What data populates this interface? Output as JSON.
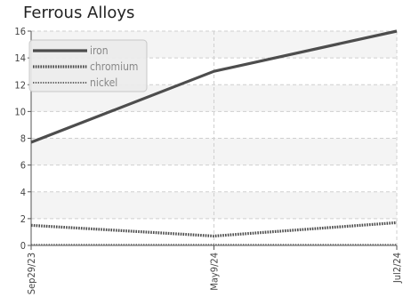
{
  "chart_data": {
    "type": "line",
    "title": "Ferrous Alloys",
    "xlabel": "",
    "ylabel": "",
    "x": [
      "Sep29/23",
      "May9/24",
      "Jul2/24"
    ],
    "ylim": [
      0,
      16
    ],
    "yticks": [
      0,
      2,
      4,
      6,
      8,
      10,
      12,
      14,
      16
    ],
    "grid": true,
    "legend_position": "top-left",
    "series": [
      {
        "name": "iron",
        "values": [
          7.7,
          13.0,
          16.0
        ],
        "color": "#4d4d4d",
        "style": "solid"
      },
      {
        "name": "chromium",
        "values": [
          1.5,
          0.7,
          1.7
        ],
        "color": "#4d4d4d",
        "style": "dotted"
      },
      {
        "name": "nickel",
        "values": [
          0.05,
          0.05,
          0.05
        ],
        "color": "#666666",
        "style": "thin-dotted"
      }
    ]
  }
}
